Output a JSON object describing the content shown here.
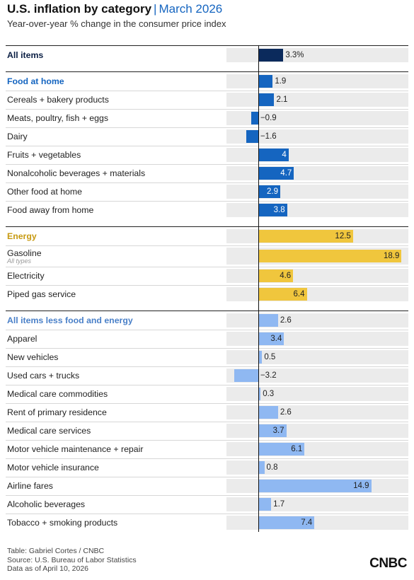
{
  "header": {
    "title": "U.S. inflation by category",
    "separator": "|",
    "date": "March 2026",
    "subtitle": "Year-over-year % change in the consumer price index"
  },
  "colors": {
    "all_items": "#0b2a5c",
    "food": "#1565c0",
    "energy": "#f0c63d",
    "core": "#8fb8f2",
    "track": "#ebebeb"
  },
  "chart_data": {
    "type": "bar",
    "orientation": "horizontal",
    "xlim": [
      -4.2,
      19.8
    ],
    "groups": [
      {
        "key": "all",
        "color": "#0b2a5c",
        "rows": [
          {
            "label": "All items",
            "value": 3.3,
            "display": "3.3%",
            "header": true
          }
        ]
      },
      {
        "key": "food",
        "color": "#1565c0",
        "rows": [
          {
            "label": "Food at home",
            "value": 1.9,
            "display": "1.9",
            "header": true
          },
          {
            "label": "Cereals + bakery products",
            "value": 2.1,
            "display": "2.1"
          },
          {
            "label": "Meats, poultry, fish + eggs",
            "value": -0.9,
            "display": "−0.9"
          },
          {
            "label": "Dairy",
            "value": -1.6,
            "display": "−1.6"
          },
          {
            "label": "Fruits + vegetables",
            "value": 4.0,
            "display": "4"
          },
          {
            "label": "Nonalcoholic beverages + materials",
            "value": 4.7,
            "display": "4.7"
          },
          {
            "label": "Other food at home",
            "value": 2.9,
            "display": "2.9"
          },
          {
            "label": "Food away from home",
            "value": 3.8,
            "display": "3.8"
          }
        ]
      },
      {
        "key": "energy",
        "color": "#f0c63d",
        "rows": [
          {
            "label": "Energy",
            "value": 12.5,
            "display": "12.5",
            "header": true
          },
          {
            "label": "Gasoline",
            "sublabel": "All types",
            "value": 18.9,
            "display": "18.9"
          },
          {
            "label": "Electricity",
            "value": 4.6,
            "display": "4.6"
          },
          {
            "label": "Piped gas service",
            "value": 6.4,
            "display": "6.4"
          }
        ]
      },
      {
        "key": "core",
        "color": "#8fb8f2",
        "rows": [
          {
            "label": "All items less food and energy",
            "value": 2.6,
            "display": "2.6",
            "header": true
          },
          {
            "label": "Apparel",
            "value": 3.4,
            "display": "3.4"
          },
          {
            "label": "New vehicles",
            "value": 0.5,
            "display": "0.5"
          },
          {
            "label": "Used cars + trucks",
            "value": -3.2,
            "display": "−3.2"
          },
          {
            "label": "Medical care commodities",
            "value": 0.3,
            "display": "0.3"
          },
          {
            "label": "Rent of primary residence",
            "value": 2.6,
            "display": "2.6"
          },
          {
            "label": "Medical care services",
            "value": 3.7,
            "display": "3.7"
          },
          {
            "label": "Motor vehicle maintenance + repair",
            "value": 6.1,
            "display": "6.1"
          },
          {
            "label": "Motor vehicle insurance",
            "value": 0.8,
            "display": "0.8"
          },
          {
            "label": "Airline fares",
            "value": 14.9,
            "display": "14.9"
          },
          {
            "label": "Alcoholic beverages",
            "value": 1.7,
            "display": "1.7"
          },
          {
            "label": "Tobacco + smoking products",
            "value": 7.4,
            "display": "7.4"
          }
        ]
      }
    ]
  },
  "footer": {
    "credit": "Table: Gabriel Cortes / CNBC",
    "source": "Source: U.S. Bureau of Labor Statistics",
    "asof": "Data as of April 10, 2026",
    "logo": "CNBC"
  }
}
